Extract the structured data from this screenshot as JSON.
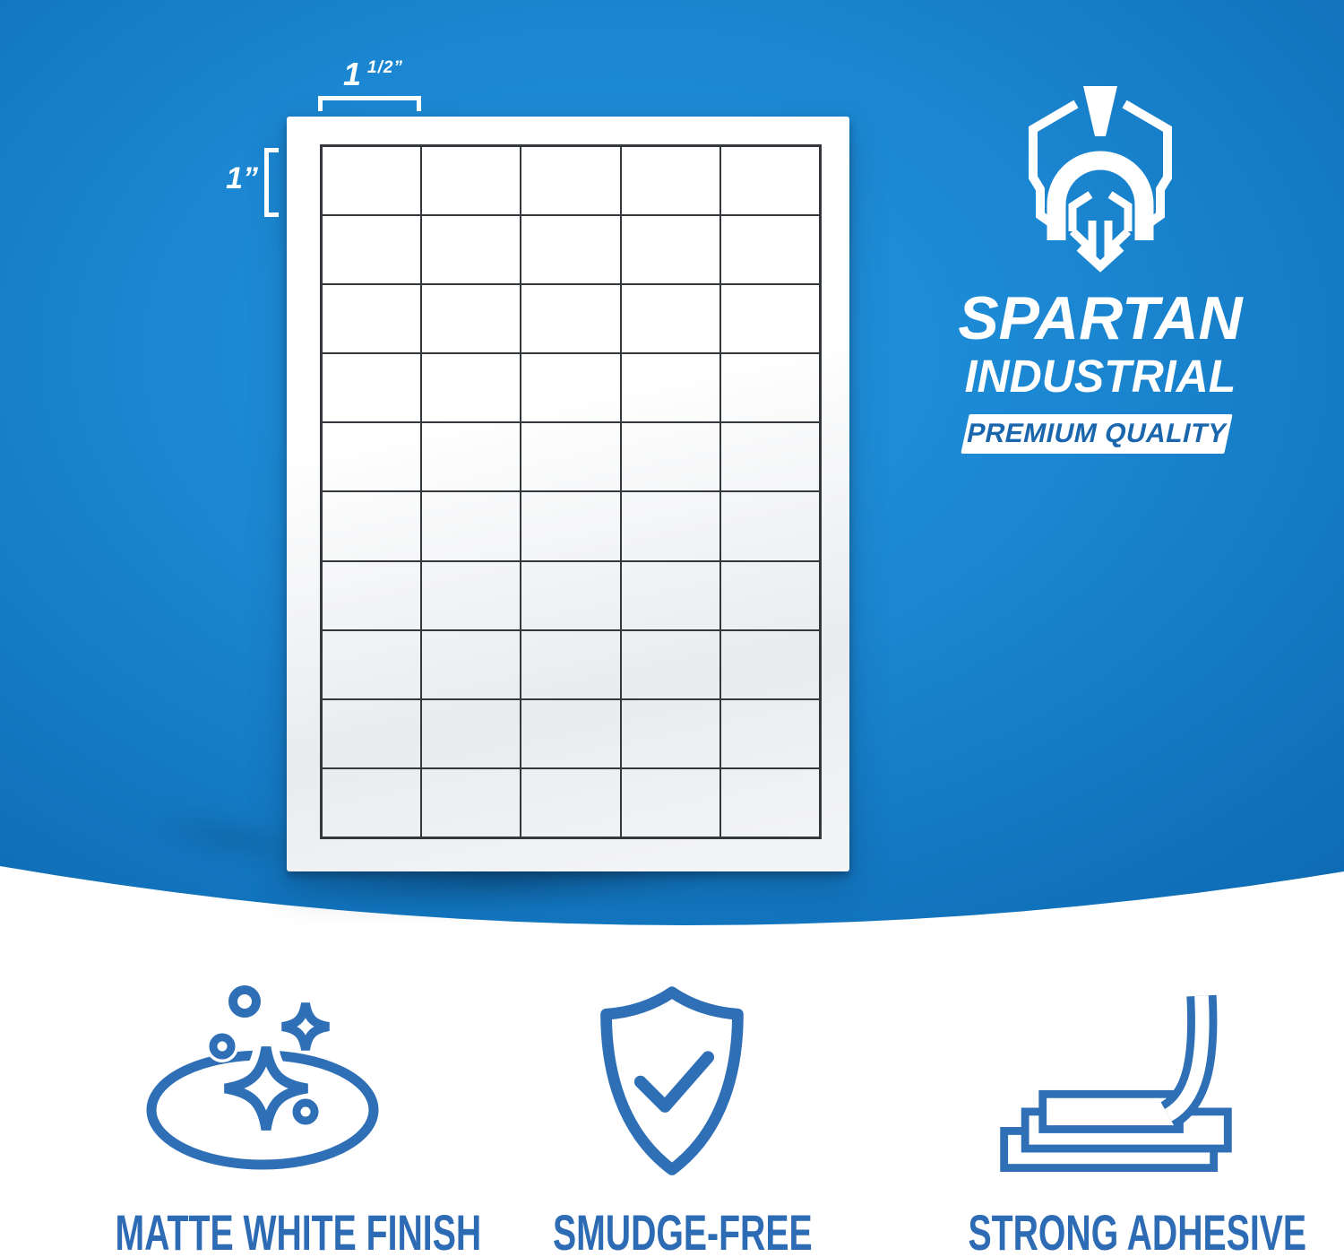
{
  "scene": {
    "brand": {
      "name": "SPARTAN",
      "line2": "INDUSTRIAL",
      "badge": "PREMIUM QUALITY",
      "logo_icon": "spartan-helmet-hexagon-icon"
    },
    "dimensions": {
      "label_width_main": "1",
      "label_width_sup": "1/2”",
      "label_height": "1”"
    },
    "sheet": {
      "rows": 10,
      "cols": 5
    },
    "features": [
      {
        "icon": "sparkle-shine-icon",
        "label": "MATTE WHITE FINISH"
      },
      {
        "icon": "shield-check-icon",
        "label": "SMUDGE-FREE"
      },
      {
        "icon": "peeling-label-icon",
        "label": "STRONG ADHESIVE"
      }
    ],
    "colors": {
      "background_blue_center": "#2397e2",
      "background_blue_mid": "#1b86d1",
      "background_blue_edge": "#0d6cb4",
      "icon_blue": "#2e6fb6",
      "caption_blue": "#2d6cb5",
      "badge_text_blue": "#1b67ae",
      "grid_line": "#34383d",
      "sheet_white": "#ffffff"
    }
  }
}
